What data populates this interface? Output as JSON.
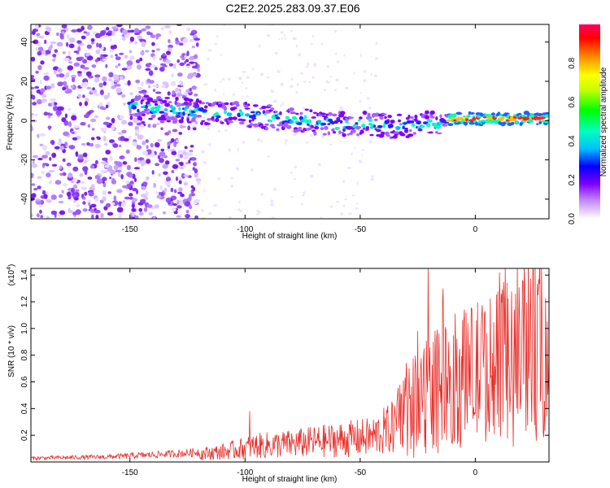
{
  "figure_title": "C2E2.2025.283.09.37.E06",
  "chart_data": [
    {
      "type": "heatmap",
      "title": "C2E2.2025.283.09.37.E06",
      "xlabel": "Height of straight line (km)",
      "ylabel": "Frequency (Hz)",
      "xlim": [
        -193,
        32
      ],
      "ylim": [
        -50,
        49
      ],
      "x_ticks": [
        -150,
        -100,
        -50,
        0
      ],
      "y_ticks": [
        -40,
        -20,
        0,
        20,
        40
      ],
      "colorbar": {
        "label": "Normalized spectral amplitude",
        "range": [
          0,
          1
        ],
        "ticks": [
          "0.0",
          "0.2",
          "0.4",
          "0.6",
          "0.8"
        ],
        "colors": [
          "#ffffff",
          "#e6ccff",
          "#c080ff",
          "#7f00ff",
          "#0000ff",
          "#00c0ff",
          "#00ffc0",
          "#00ff00",
          "#c0ff00",
          "#ffff00",
          "#ff8000",
          "#ff0000",
          "#ff0060"
        ]
      },
      "ridge_center_hz": [
        [
          -148,
          7
        ],
        [
          -125,
          5
        ],
        [
          -100,
          3
        ],
        [
          -75,
          0
        ],
        [
          -60,
          -2
        ],
        [
          -48,
          -1
        ],
        [
          -35,
          -3
        ],
        [
          -25,
          -2
        ],
        [
          -15,
          -1
        ],
        [
          -10,
          1
        ],
        [
          0,
          1
        ],
        [
          32,
          1
        ]
      ],
      "noise_extent_km": [
        -193,
        -120
      ]
    },
    {
      "type": "line",
      "xlabel": "Height of straight line (km)",
      "ylabel": "SNR (10 * v/v)",
      "y_multiplier_label": "(x10",
      "y_multiplier_exp": "4",
      "y_multiplier_close": ")",
      "xlim": [
        -193,
        32
      ],
      "ylim": [
        0,
        1.45
      ],
      "x_ticks": [
        -150,
        -100,
        -50,
        0
      ],
      "y_ticks": [
        "0.2",
        "0.4",
        "0.6",
        "0.8",
        "1.0",
        "1.2",
        "1.4"
      ],
      "series": [
        {
          "name": "SNR",
          "color": "#e8302c",
          "envelope": [
            [
              -193,
              0.03
            ],
            [
              -160,
              0.04
            ],
            [
              -125,
              0.07
            ],
            [
              -110,
              0.1
            ],
            [
              -95,
              0.16
            ],
            [
              -80,
              0.18
            ],
            [
              -60,
              0.22
            ],
            [
              -45,
              0.25
            ],
            [
              -35,
              0.35
            ],
            [
              -28,
              0.55
            ],
            [
              -20,
              0.75
            ],
            [
              -10,
              0.82
            ],
            [
              0,
              0.9
            ],
            [
              10,
              0.95
            ],
            [
              20,
              1.05
            ],
            [
              32,
              1.12
            ]
          ],
          "spikes": [
            [
              -98,
              0.38
            ],
            [
              -36,
              0.43
            ],
            [
              -30,
              0.74
            ],
            [
              -25,
              0.98
            ],
            [
              -20.5,
              1.45
            ],
            [
              -14,
              1.3
            ],
            [
              -5,
              1.05
            ],
            [
              10.5,
              1.42
            ],
            [
              12,
              0.3
            ]
          ]
        }
      ]
    }
  ]
}
